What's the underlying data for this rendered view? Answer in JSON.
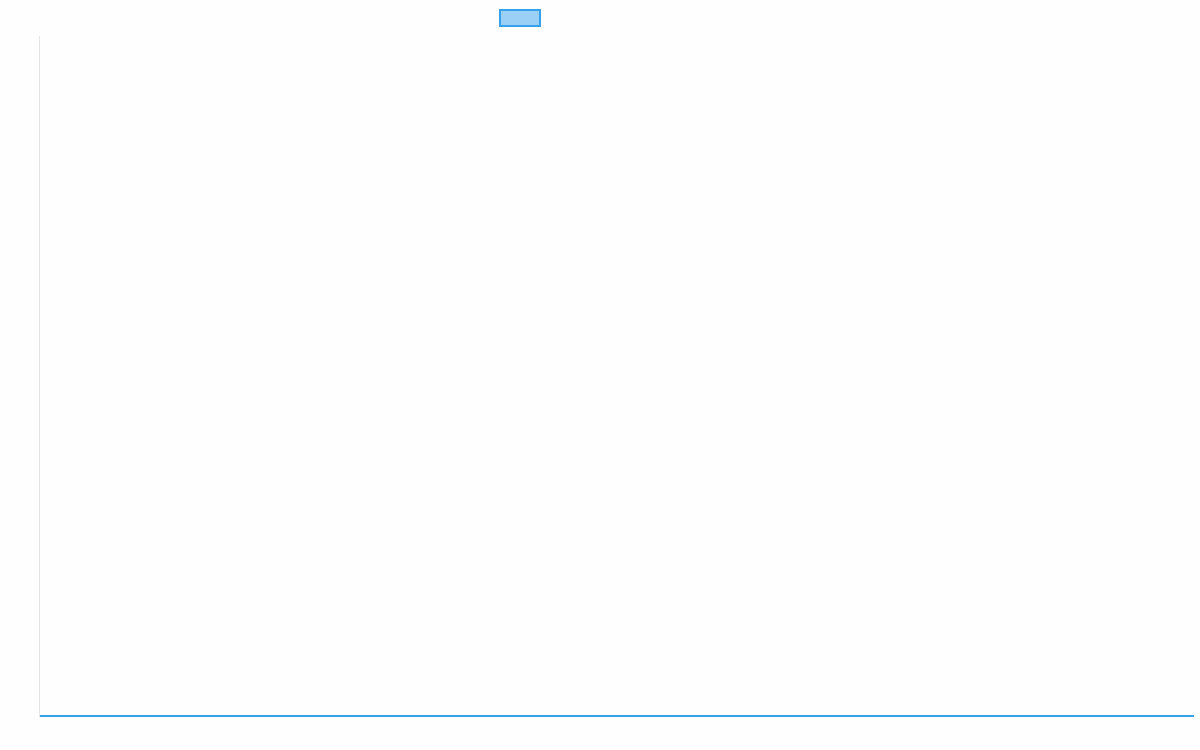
{
  "chart_data": {
    "type": "line",
    "title": "",
    "xlabel": "",
    "ylabel": "",
    "categories": [],
    "series": [
      {
        "name": "",
        "values": [],
        "color": "#36a2eb",
        "fill": "#9ad0f5"
      }
    ],
    "legend": "top",
    "grid": false
  }
}
